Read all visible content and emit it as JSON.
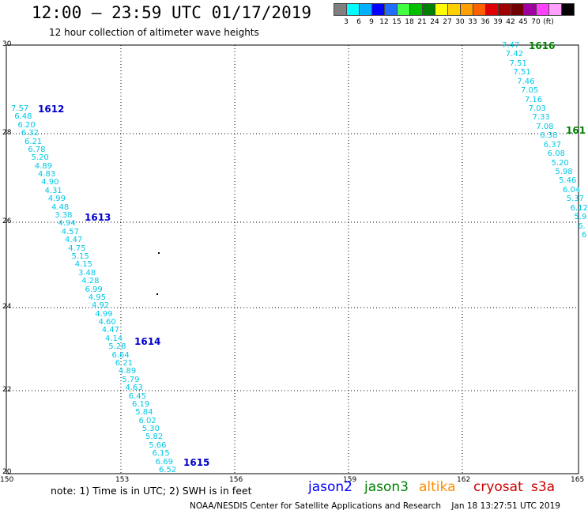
{
  "title": "12:00 — 23:59 UTC 01/17/2019",
  "subtitle": "12 hour collection of altimeter wave heights",
  "colorbar": {
    "colors": [
      "#808080",
      "#00ffff",
      "#00b0ff",
      "#0000ff",
      "#1f6fff",
      "#40ff40",
      "#00c000",
      "#008000",
      "#ffff00",
      "#ffd000",
      "#ffa000",
      "#ff6000",
      "#e00000",
      "#a00000",
      "#700000",
      "#a000a0",
      "#ff40ff",
      "#ffa0ff",
      "#000000"
    ],
    "labels": [
      "3",
      "6",
      "9",
      "12",
      "15",
      "18",
      "21",
      "24",
      "27",
      "30",
      "33",
      "36",
      "39",
      "42",
      "45",
      "70",
      "(ft)"
    ]
  },
  "axes": {
    "y_labels": [
      "30",
      "28",
      "26",
      "24",
      "22",
      "20"
    ],
    "x_labels": [
      "150",
      "153",
      "156",
      "159",
      "162",
      "165"
    ]
  },
  "tracks": [
    {
      "satellite": "jason2",
      "color": "#00c8e6",
      "values": [
        "7.57",
        "6.48",
        "6.20",
        "6.32",
        "6.21",
        "6.78",
        "5.20",
        "4.89",
        "4.83",
        "4.90",
        "4.31",
        "4.99",
        "4.48",
        "3.38",
        "4.94",
        "4.57",
        "4.47",
        "4.75",
        "5.15",
        "4.15",
        "3.48",
        "4.28",
        "6.99",
        "4.95",
        "4.92",
        "4.99",
        "4.60",
        "4.47",
        "4.14",
        "5.28",
        "6.64",
        "6.21",
        "4.89",
        "5.79",
        "4.63",
        "6.45",
        "6.19",
        "5.84",
        "6.02",
        "5.30",
        "5.82",
        "5.66",
        "6.15",
        "6.69",
        "6.52"
      ]
    },
    {
      "satellite": "jason3",
      "color": "#00c8e6",
      "values": [
        "7.47",
        "7.42",
        "7.51",
        "7.51",
        "7.46",
        "7.05",
        "7.16",
        "7.03",
        "7.33",
        "7.08",
        "6.38",
        "6.37",
        "6.08",
        "5.20",
        "5.98",
        "5.46",
        "6.04",
        "5.37",
        "6.12",
        "5.9",
        "6.",
        "6"
      ]
    }
  ],
  "pass_labels": [
    {
      "text": "1612",
      "color": "#0000cc"
    },
    {
      "text": "1613",
      "color": "#0000cc"
    },
    {
      "text": "1614",
      "color": "#0000cc"
    },
    {
      "text": "1615",
      "color": "#0000cc"
    },
    {
      "text": "1616",
      "color": "#008000"
    },
    {
      "text": "161",
      "color": "#008000"
    }
  ],
  "note": "note:  1) Time is in UTC;  2) SWH is in feet",
  "legend": [
    {
      "name": "jason2",
      "color": "#0000ff"
    },
    {
      "name": "jason3",
      "color": "#008000"
    },
    {
      "name": "altika",
      "color": "#ff8c00"
    },
    {
      "name": "cryosat",
      "color": "#cc0000"
    },
    {
      "name": "s3a",
      "color": "#cc0000"
    }
  ],
  "footer": "NOAA/NESDIS Center for Satellite Applications and Research    Jan 18 13:27:51 UTC 2019"
}
